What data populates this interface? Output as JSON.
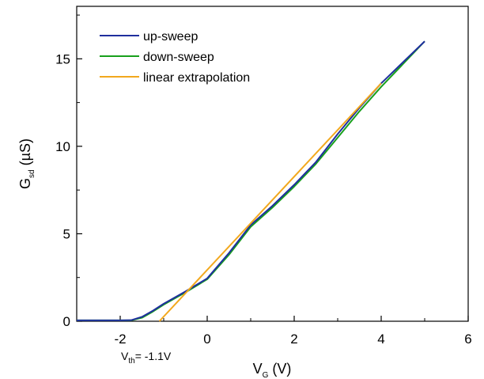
{
  "chart_data": {
    "type": "line",
    "xlim": [
      -3,
      6
    ],
    "ylim": [
      0,
      18
    ],
    "x_ticks": [
      "-2",
      "0",
      "2",
      "4",
      "6"
    ],
    "y_ticks": [
      "0",
      "5",
      "10",
      "15"
    ],
    "xlabel": {
      "main": "V",
      "sub": "G",
      "unit": " (V)"
    },
    "ylabel": {
      "main": "G",
      "sub": "sd",
      "unit": " (µS)"
    },
    "legend_position": "top-left",
    "annotation": {
      "main": "V",
      "sub": "th",
      "text": "= -1.1V",
      "x": -1.1
    },
    "series": [
      {
        "name": "up-sweep",
        "color": "#1f2f9e",
        "x": [
          -3.0,
          -2.0,
          -1.75,
          -1.5,
          -1.25,
          -1.0,
          -0.5,
          0.0,
          0.5,
          1.0,
          1.5,
          2.0,
          2.5,
          3.0,
          3.5,
          4.0,
          4.5,
          5.0
        ],
        "y": [
          0.05,
          0.05,
          0.06,
          0.25,
          0.6,
          1.0,
          1.7,
          2.45,
          3.9,
          5.5,
          6.6,
          7.8,
          9.1,
          10.7,
          12.2,
          13.6,
          14.8,
          16.0
        ]
      },
      {
        "name": "down-sweep",
        "color": "#18a01c",
        "x": [
          -3.0,
          -2.0,
          -1.75,
          -1.5,
          -1.25,
          -1.0,
          -0.5,
          0.0,
          0.5,
          1.0,
          1.5,
          2.0,
          2.5,
          3.0,
          3.5,
          4.0,
          4.5,
          5.0
        ],
        "y": [
          0.05,
          0.05,
          0.05,
          0.2,
          0.55,
          0.95,
          1.65,
          2.4,
          3.8,
          5.4,
          6.5,
          7.7,
          9.0,
          10.5,
          12.0,
          13.4,
          14.7,
          16.0
        ]
      },
      {
        "name": "linear extrapolation",
        "color": "#f2a81d",
        "x": [
          -1.1,
          4.0
        ],
        "y": [
          0.0,
          13.6
        ]
      }
    ]
  }
}
